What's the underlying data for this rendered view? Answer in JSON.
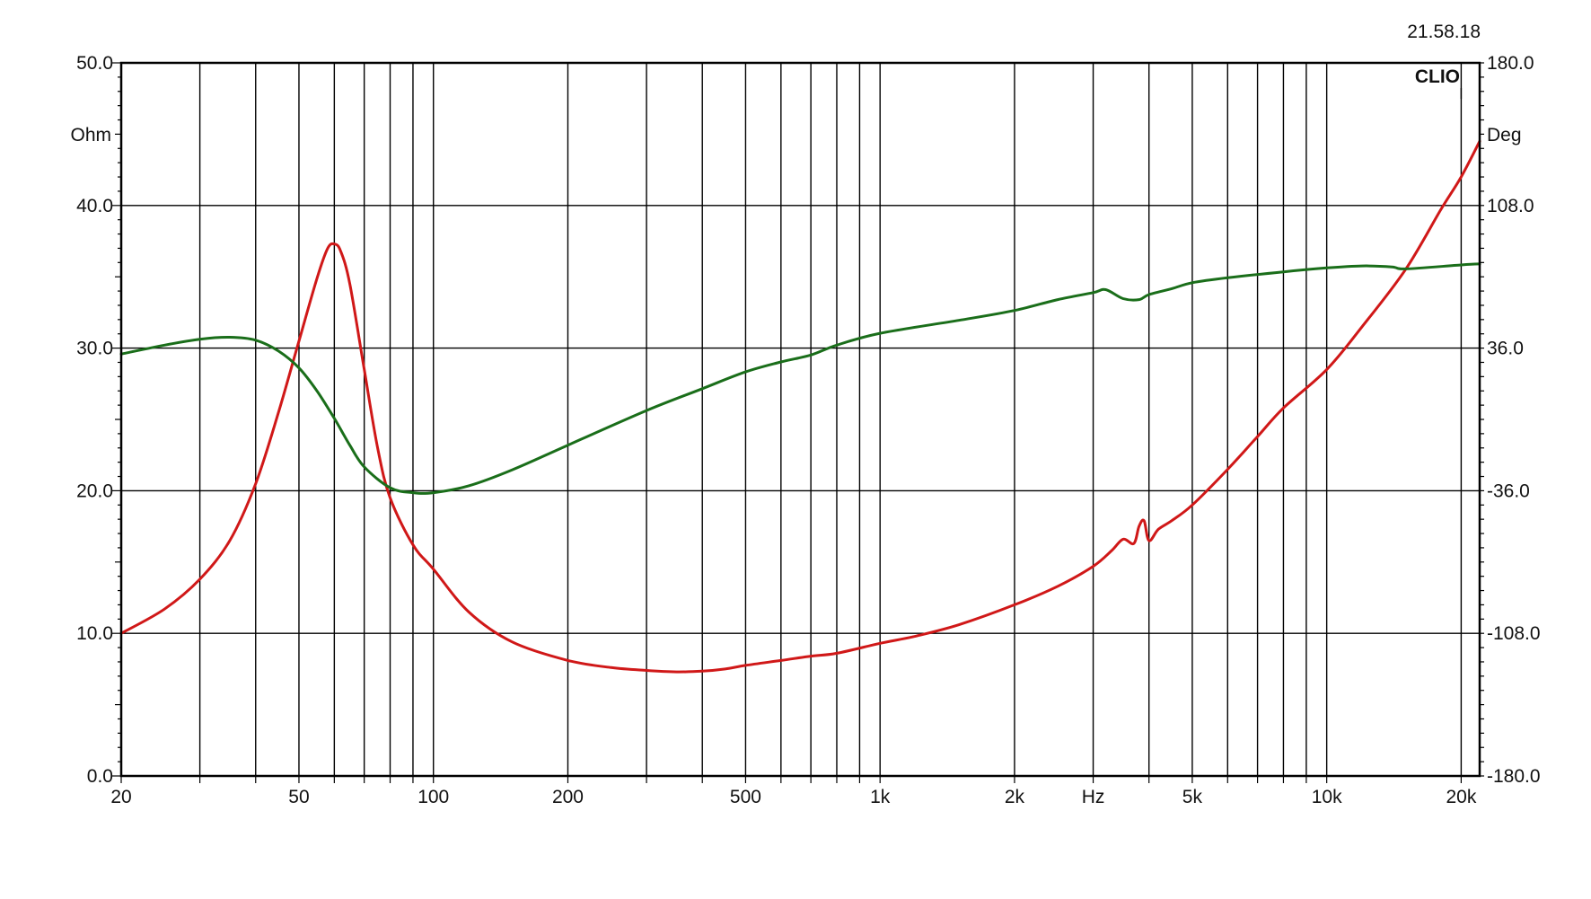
{
  "timestamp": "21.58.18",
  "brand": "CLIO",
  "chart_data": {
    "type": "line",
    "x_scale": "log",
    "xlim": [
      20,
      22000
    ],
    "ylim_left": [
      0,
      50
    ],
    "ylim_right": [
      -180,
      180
    ],
    "ylabel_left": "Ohm",
    "ylabel_right": "Deg",
    "xlabel": "Hz",
    "grid": true,
    "x_tick_labels": [
      {
        "value": 20,
        "label": "20"
      },
      {
        "value": 50,
        "label": "50"
      },
      {
        "value": 100,
        "label": "100"
      },
      {
        "value": 200,
        "label": "200"
      },
      {
        "value": 500,
        "label": "500"
      },
      {
        "value": 1000,
        "label": "1k"
      },
      {
        "value": 2000,
        "label": "2k"
      },
      {
        "value": 5000,
        "label": "5k"
      },
      {
        "value": 10000,
        "label": "10k"
      },
      {
        "value": 20000,
        "label": "20k"
      }
    ],
    "x_minor_grid": [
      30,
      40,
      60,
      70,
      80,
      90,
      300,
      400,
      600,
      700,
      800,
      900,
      3000,
      4000,
      6000,
      7000,
      8000,
      9000
    ],
    "y_left_ticks": [
      {
        "value": 0,
        "label": "0.0"
      },
      {
        "value": 10,
        "label": "10.0"
      },
      {
        "value": 20,
        "label": "20.0"
      },
      {
        "value": 30,
        "label": "30.0"
      },
      {
        "value": 40,
        "label": "40.0"
      },
      {
        "value": 50,
        "label": "50.0"
      }
    ],
    "y_right_ticks": [
      {
        "value": -180,
        "label": "-180.0"
      },
      {
        "value": -108,
        "label": "-108.0"
      },
      {
        "value": -36,
        "label": "-36.0"
      },
      {
        "value": 36,
        "label": "36.0"
      },
      {
        "value": 108,
        "label": "108.0"
      },
      {
        "value": 180,
        "label": "180.0"
      }
    ],
    "series": [
      {
        "axis": "left",
        "color": "#d01818",
        "x": [
          20,
          25,
          30,
          35,
          40,
          45,
          50,
          55,
          58,
          60,
          62,
          65,
          70,
          75,
          80,
          90,
          100,
          120,
          150,
          200,
          250,
          300,
          350,
          400,
          450,
          500,
          600,
          700,
          800,
          1000,
          1200,
          1500,
          2000,
          2500,
          3000,
          3300,
          3500,
          3700,
          3800,
          3900,
          4000,
          4200,
          4500,
          5000,
          6000,
          7000,
          8000,
          10000,
          12000,
          15000,
          18000,
          20000,
          22000
        ],
        "y": [
          10.0,
          11.7,
          13.8,
          16.5,
          20.5,
          25.5,
          30.5,
          35.0,
          37.0,
          37.3,
          36.8,
          34.5,
          28.5,
          23.0,
          19.5,
          16.2,
          14.5,
          11.5,
          9.4,
          8.1,
          7.6,
          7.4,
          7.3,
          7.35,
          7.5,
          7.75,
          8.1,
          8.4,
          8.6,
          9.3,
          9.8,
          10.6,
          12.0,
          13.3,
          14.7,
          15.8,
          16.6,
          16.3,
          17.5,
          17.9,
          16.5,
          17.3,
          17.9,
          19.0,
          21.5,
          23.8,
          25.8,
          28.5,
          31.5,
          35.5,
          39.7,
          42.0,
          44.5
        ]
      },
      {
        "axis": "right",
        "color": "#1a6e1a",
        "x": [
          20,
          25,
          30,
          35,
          40,
          45,
          50,
          55,
          60,
          65,
          70,
          80,
          90,
          100,
          120,
          150,
          200,
          300,
          400,
          500,
          600,
          700,
          800,
          1000,
          1500,
          2000,
          2500,
          3000,
          3200,
          3500,
          3800,
          4000,
          4500,
          5000,
          6000,
          8000,
          10000,
          12000,
          14000,
          15000,
          20000,
          22000
        ],
        "y": [
          33.0,
          37.5,
          40.5,
          41.5,
          40.0,
          34.5,
          26.0,
          14.0,
          0.5,
          -13.0,
          -24.0,
          -34.5,
          -37.0,
          -37.0,
          -33.5,
          -25.5,
          -13.0,
          4.5,
          15.5,
          24.0,
          29.0,
          32.5,
          37.5,
          43.5,
          50.0,
          55.0,
          60.5,
          64.0,
          65.5,
          61.0,
          60.5,
          63.0,
          66.0,
          69.0,
          71.5,
          74.5,
          76.5,
          77.5,
          77.0,
          76.0,
          78.0,
          78.5
        ]
      }
    ]
  }
}
